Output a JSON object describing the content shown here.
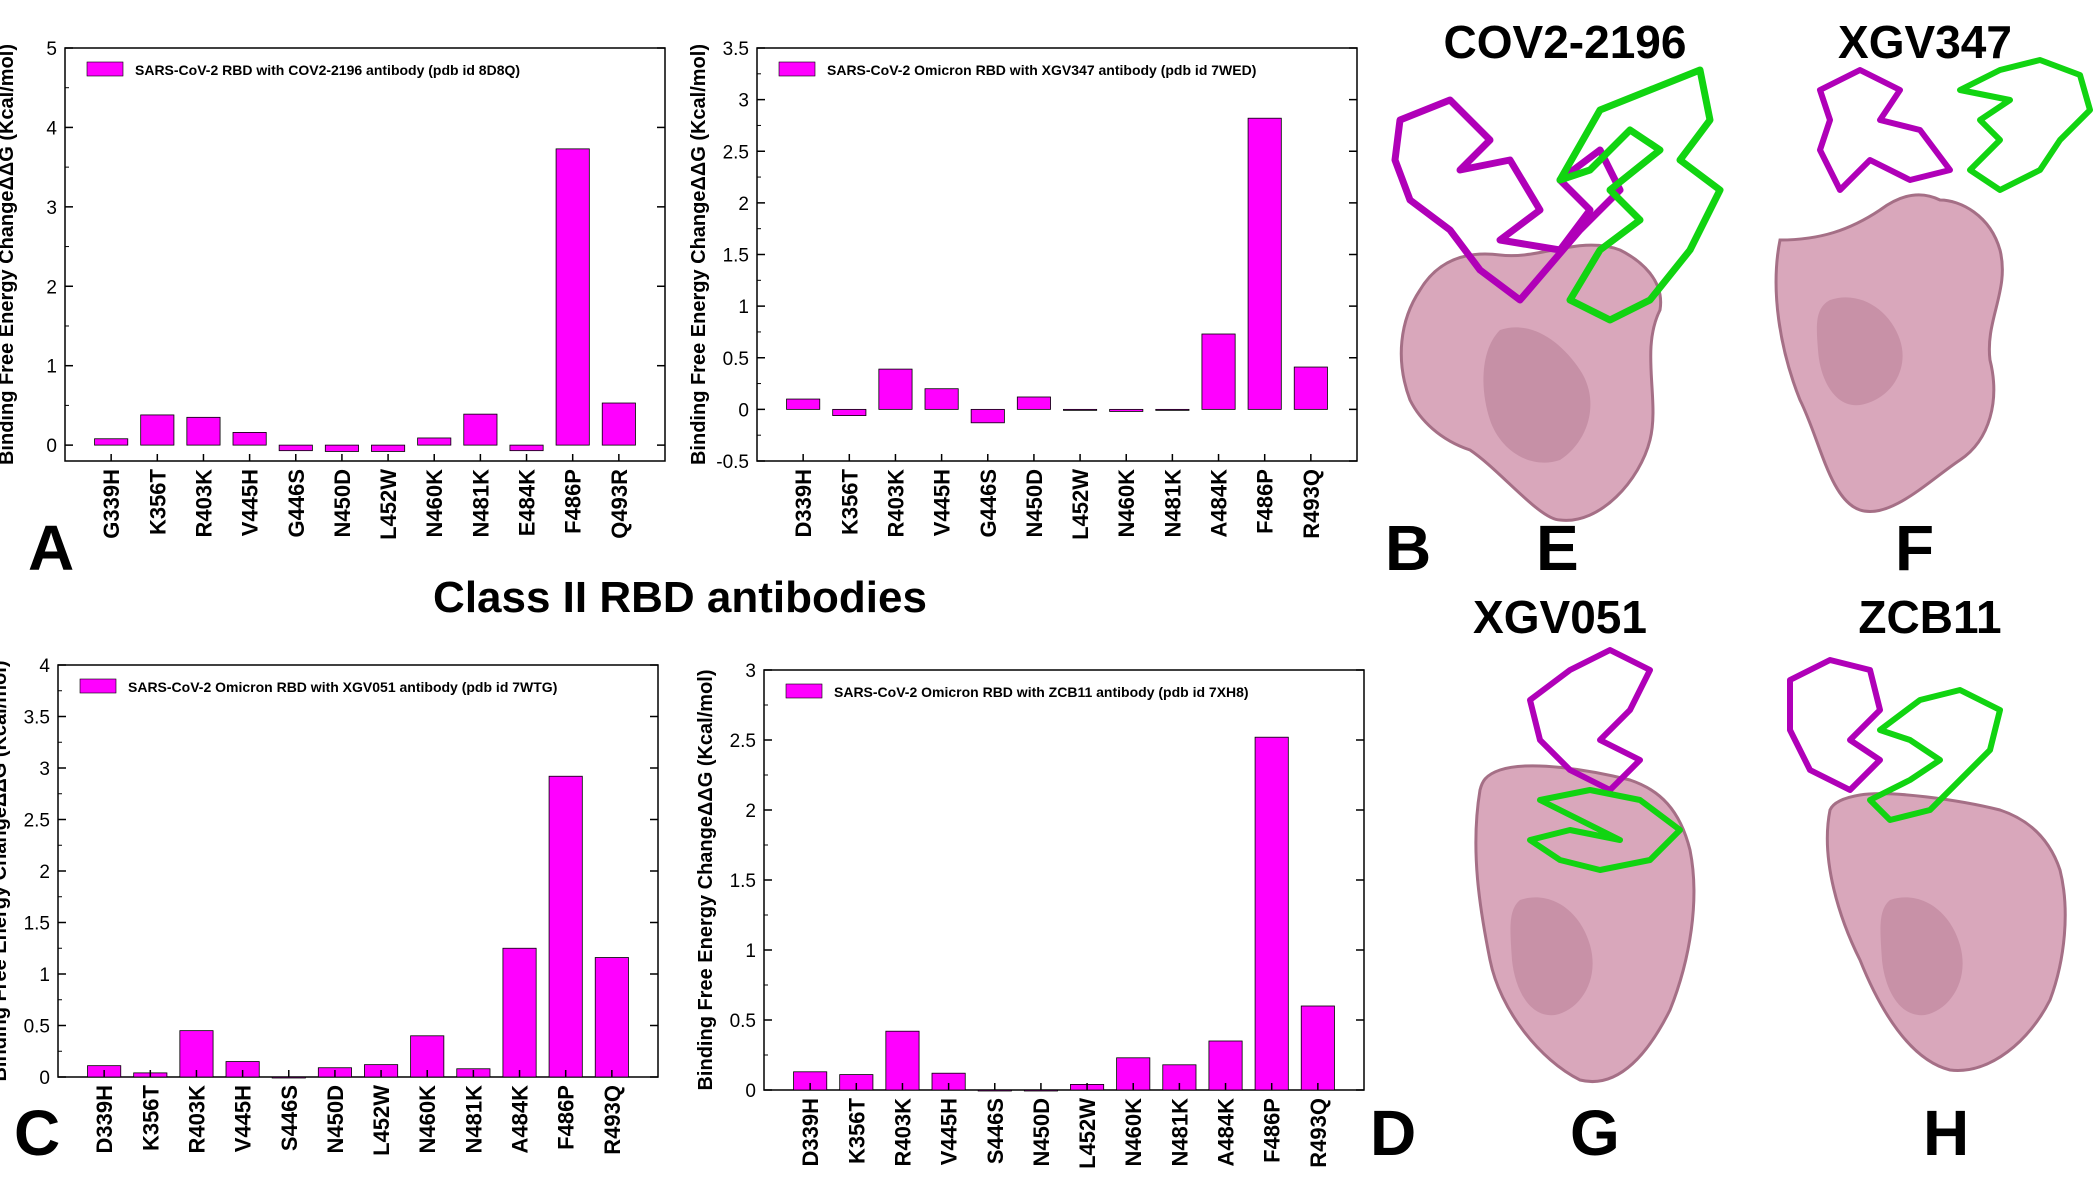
{
  "figure": {
    "class_title": "Class II RBD antibodies",
    "panel_letters": [
      "A",
      "B",
      "C",
      "D",
      "E",
      "F",
      "G",
      "H"
    ],
    "structure_titles": [
      "COV2-2196",
      "XGV347",
      "XGV051",
      "ZCB11"
    ],
    "colors": {
      "bar": "#ff00ff",
      "heavy_chain": "#b000b8",
      "light_chain": "#11d411",
      "rbd_surface": "#d9a7bb",
      "rbd_shadow": "#a56f86"
    }
  },
  "chart_data": [
    {
      "type": "bar",
      "title": "",
      "legend": "SARS-CoV-2 RBD  with  COV2-2196 antibody (pdb id 8D8Q)",
      "ylabel": "Binding Free Energy ChangeΔΔG (Kcal/mol)",
      "xlabel": "",
      "ylim": [
        -0.2,
        5
      ],
      "yticks": [
        0,
        1,
        2,
        3,
        4,
        5
      ],
      "ytick_labels": [
        "0",
        "1",
        "2",
        "3",
        "4",
        "5"
      ],
      "categories": [
        "G339H",
        "K356T",
        "R403K",
        "V445H",
        "G446S",
        "N450D",
        "L452W",
        "N460K",
        "N481K",
        "E484K",
        "F486P",
        "Q493R"
      ],
      "values": [
        0.08,
        0.38,
        0.35,
        0.16,
        -0.07,
        -0.08,
        -0.08,
        0.09,
        0.39,
        -0.07,
        3.73,
        0.53
      ]
    },
    {
      "type": "bar",
      "title": "",
      "legend": "SARS-CoV-2  Omicron RBD  with XGV347 antibody (pdb id 7WED)",
      "ylabel": "Binding Free Energy ChangeΔΔG (Kcal/mol)",
      "xlabel": "",
      "ylim": [
        -0.5,
        3.5
      ],
      "yticks": [
        -0.5,
        0,
        0.5,
        1,
        1.5,
        2,
        2.5,
        3,
        3.5
      ],
      "ytick_labels": [
        "-0.5",
        "0",
        "0.5",
        "1",
        "1.5",
        "2",
        "2.5",
        "3",
        "3.5"
      ],
      "categories": [
        "D339H",
        "K356T",
        "R403K",
        "V445H",
        "G446S",
        "N450D",
        "L452W",
        "N460K",
        "N481K",
        "A484K",
        "F486P",
        "R493Q"
      ],
      "values": [
        0.1,
        -0.06,
        0.39,
        0.2,
        -0.13,
        0.12,
        0.0,
        -0.02,
        0.0,
        0.73,
        2.82,
        0.41
      ]
    },
    {
      "type": "bar",
      "title": "",
      "legend": "SARS-CoV-2  Omicron RBD  with XGV051 antibody (pdb id 7WTG)",
      "ylabel": "Binding Free Energy ChangeΔΔG (Kcal/mol)",
      "xlabel": "",
      "ylim": [
        0,
        4
      ],
      "yticks": [
        0,
        0.5,
        1,
        1.5,
        2,
        2.5,
        3,
        3.5,
        4
      ],
      "ytick_labels": [
        "0",
        "0.5",
        "1",
        "1.5",
        "2",
        "2.5",
        "3",
        "3.5",
        "4"
      ],
      "categories": [
        "D339H",
        "K356T",
        "R403K",
        "V445H",
        "S446S",
        "N450D",
        "L452W",
        "N460K",
        "N481K",
        "A484K",
        "F486P",
        "R493Q"
      ],
      "values": [
        0.11,
        0.04,
        0.45,
        0.15,
        0.0,
        0.09,
        0.12,
        0.4,
        0.08,
        1.25,
        2.92,
        1.16
      ]
    },
    {
      "type": "bar",
      "title": "",
      "legend": "SARS-CoV-2  Omicron RBD  with ZCB11 antibody (pdb id 7XH8)",
      "ylabel": "Binding Free Energy ChangeΔΔG (Kcal/mol)",
      "xlabel": "",
      "ylim": [
        0,
        3
      ],
      "yticks": [
        0,
        0.5,
        1,
        1.5,
        2,
        2.5,
        3
      ],
      "ytick_labels": [
        "0",
        "0.5",
        "1",
        "1.5",
        "2",
        "2.5",
        "3"
      ],
      "categories": [
        "D339H",
        "K356T",
        "R403K",
        "V445H",
        "S446S",
        "N450D",
        "L452W",
        "N460K",
        "N481K",
        "A484K",
        "F486P",
        "R493Q"
      ],
      "values": [
        0.13,
        0.11,
        0.42,
        0.12,
        0.0,
        0.0,
        0.04,
        0.23,
        0.18,
        0.35,
        2.52,
        0.6
      ]
    }
  ]
}
